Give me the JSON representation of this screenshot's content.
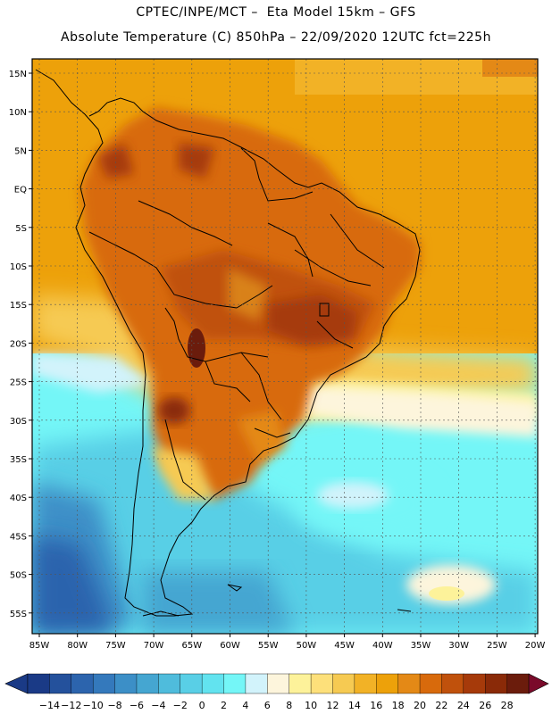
{
  "header": {
    "line1": "CPTEC/INPE/MCT –  Eta Model 15km – GFS",
    "line2": "Absolute Temperature (C) 850hPa – 22/09/2020 12UTC fct=225h"
  },
  "map": {
    "lat_labels": [
      "15N",
      "10N",
      "5N",
      "EQ",
      "5S",
      "10S",
      "15S",
      "20S",
      "25S",
      "30S",
      "35S",
      "40S",
      "45S",
      "50S",
      "55S"
    ],
    "lon_labels": [
      "85W",
      "80W",
      "75W",
      "70W",
      "65W",
      "60W",
      "55W",
      "50W",
      "45W",
      "40W",
      "35W",
      "30W",
      "25W",
      "20W"
    ]
  },
  "colorbar": {
    "labels": [
      "-14",
      "-12",
      "-10",
      "-8",
      "-6",
      "-4",
      "-2",
      "0",
      "2",
      "4",
      "6",
      "8",
      "10",
      "12",
      "14",
      "16",
      "18",
      "20",
      "22",
      "24",
      "26",
      "28"
    ],
    "colors": [
      "#1a3a86",
      "#24519c",
      "#2c64ad",
      "#3479bc",
      "#3c8fc7",
      "#45a6d1",
      "#4fbcdc",
      "#59cfe6",
      "#62e3ef",
      "#74f6f7",
      "#d2f3fb",
      "#fdf5dc",
      "#fdf29a",
      "#fde07a",
      "#f6ca52",
      "#f2b226",
      "#eda10a",
      "#e48916",
      "#d86a0c",
      "#c0510c",
      "#a63a0a",
      "#8a2a08",
      "#6b1c0c"
    ],
    "under_color": "#1a3a86",
    "over_color": "#7a0a2a"
  }
}
